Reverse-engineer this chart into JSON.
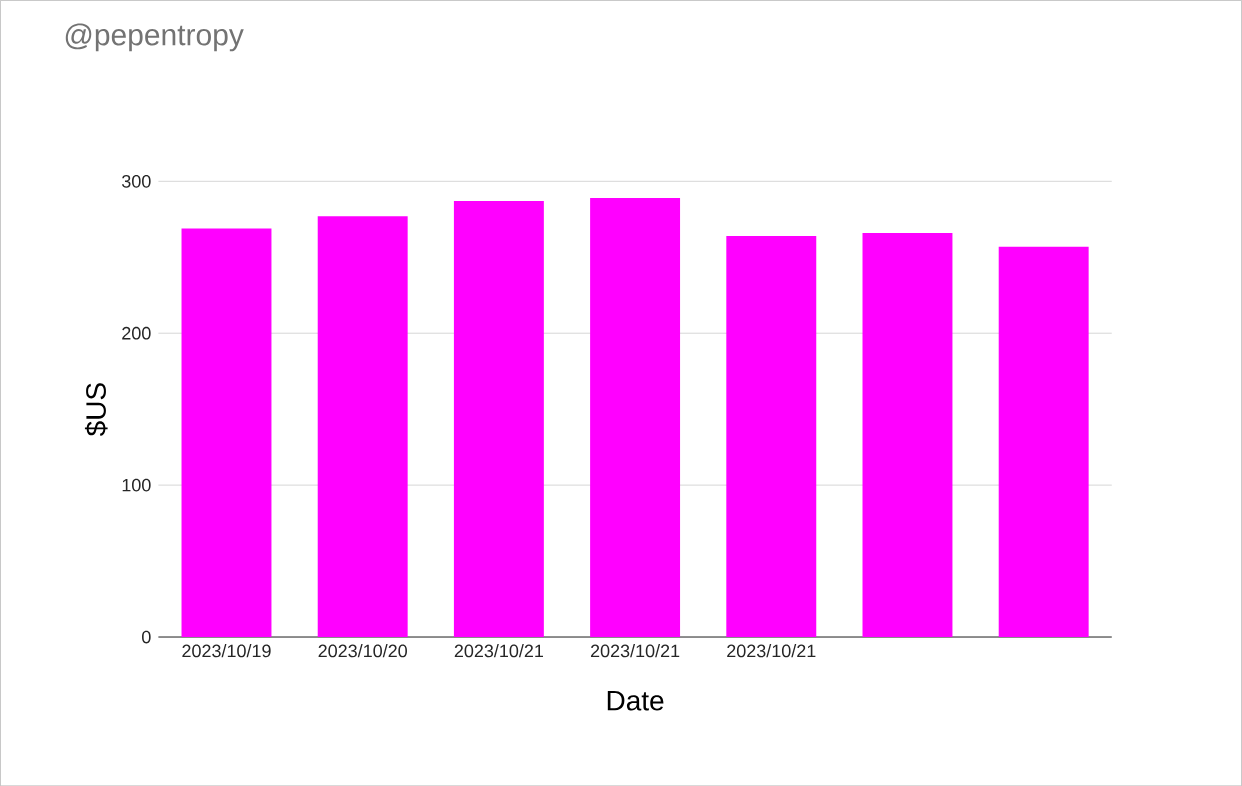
{
  "chart_data": {
    "type": "bar",
    "title": "@pepentropy",
    "xlabel": "Date",
    "ylabel": "$US",
    "categories": [
      "2023/10/19",
      "2023/10/20",
      "2023/10/21",
      "2023/10/21",
      "2023/10/21",
      null,
      null
    ],
    "values": [
      269,
      277,
      287,
      289,
      264,
      266,
      257
    ],
    "color": "#ff00ff",
    "ylim": [
      0,
      300
    ],
    "yticks": [
      0,
      100,
      200,
      300
    ],
    "grid": "y"
  }
}
